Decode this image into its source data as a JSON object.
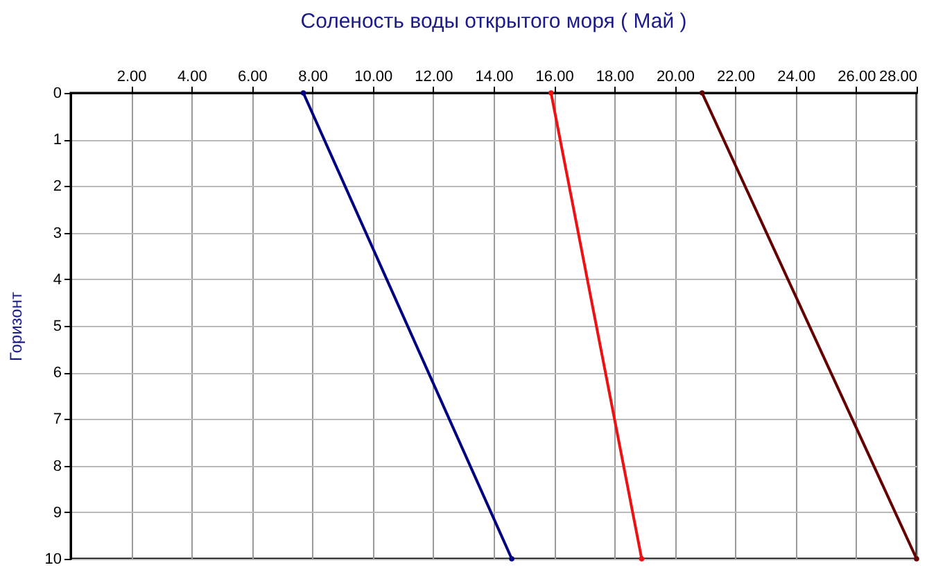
{
  "chart_data": {
    "type": "line",
    "title": "Соленость воды открытого моря    ( Май )",
    "ylabel": "Горизонт",
    "xlim": [
      0,
      28
    ],
    "xticks": [
      {
        "value": 2,
        "label": "2.00"
      },
      {
        "value": 4,
        "label": "4.00"
      },
      {
        "value": 6,
        "label": "6.00"
      },
      {
        "value": 8,
        "label": "8.00"
      },
      {
        "value": 10,
        "label": "10.00"
      },
      {
        "value": 12,
        "label": "12.00"
      },
      {
        "value": 14,
        "label": "14.00"
      },
      {
        "value": 16,
        "label": "16.00"
      },
      {
        "value": 18,
        "label": "18.00"
      },
      {
        "value": 20,
        "label": "20.00"
      },
      {
        "value": 22,
        "label": "22.00"
      },
      {
        "value": 24,
        "label": "24.00"
      },
      {
        "value": 26,
        "label": "26.00"
      },
      {
        "value": 28,
        "label": "28.00"
      }
    ],
    "ylim": [
      10,
      0
    ],
    "yticks": [
      0,
      1,
      2,
      3,
      4,
      5,
      6,
      7,
      8,
      9,
      10
    ],
    "grid": true,
    "marker": "circle",
    "line_style": "solid",
    "series": [
      {
        "color": "#000080",
        "x": [
          7.7,
          14.6
        ],
        "values": [
          0,
          10
        ]
      },
      {
        "color": "#ee1111",
        "x": [
          15.9,
          18.9
        ],
        "values": [
          0,
          10
        ]
      },
      {
        "color": "#660000",
        "x": [
          20.9,
          28
        ],
        "values": [
          0,
          10
        ]
      }
    ]
  }
}
